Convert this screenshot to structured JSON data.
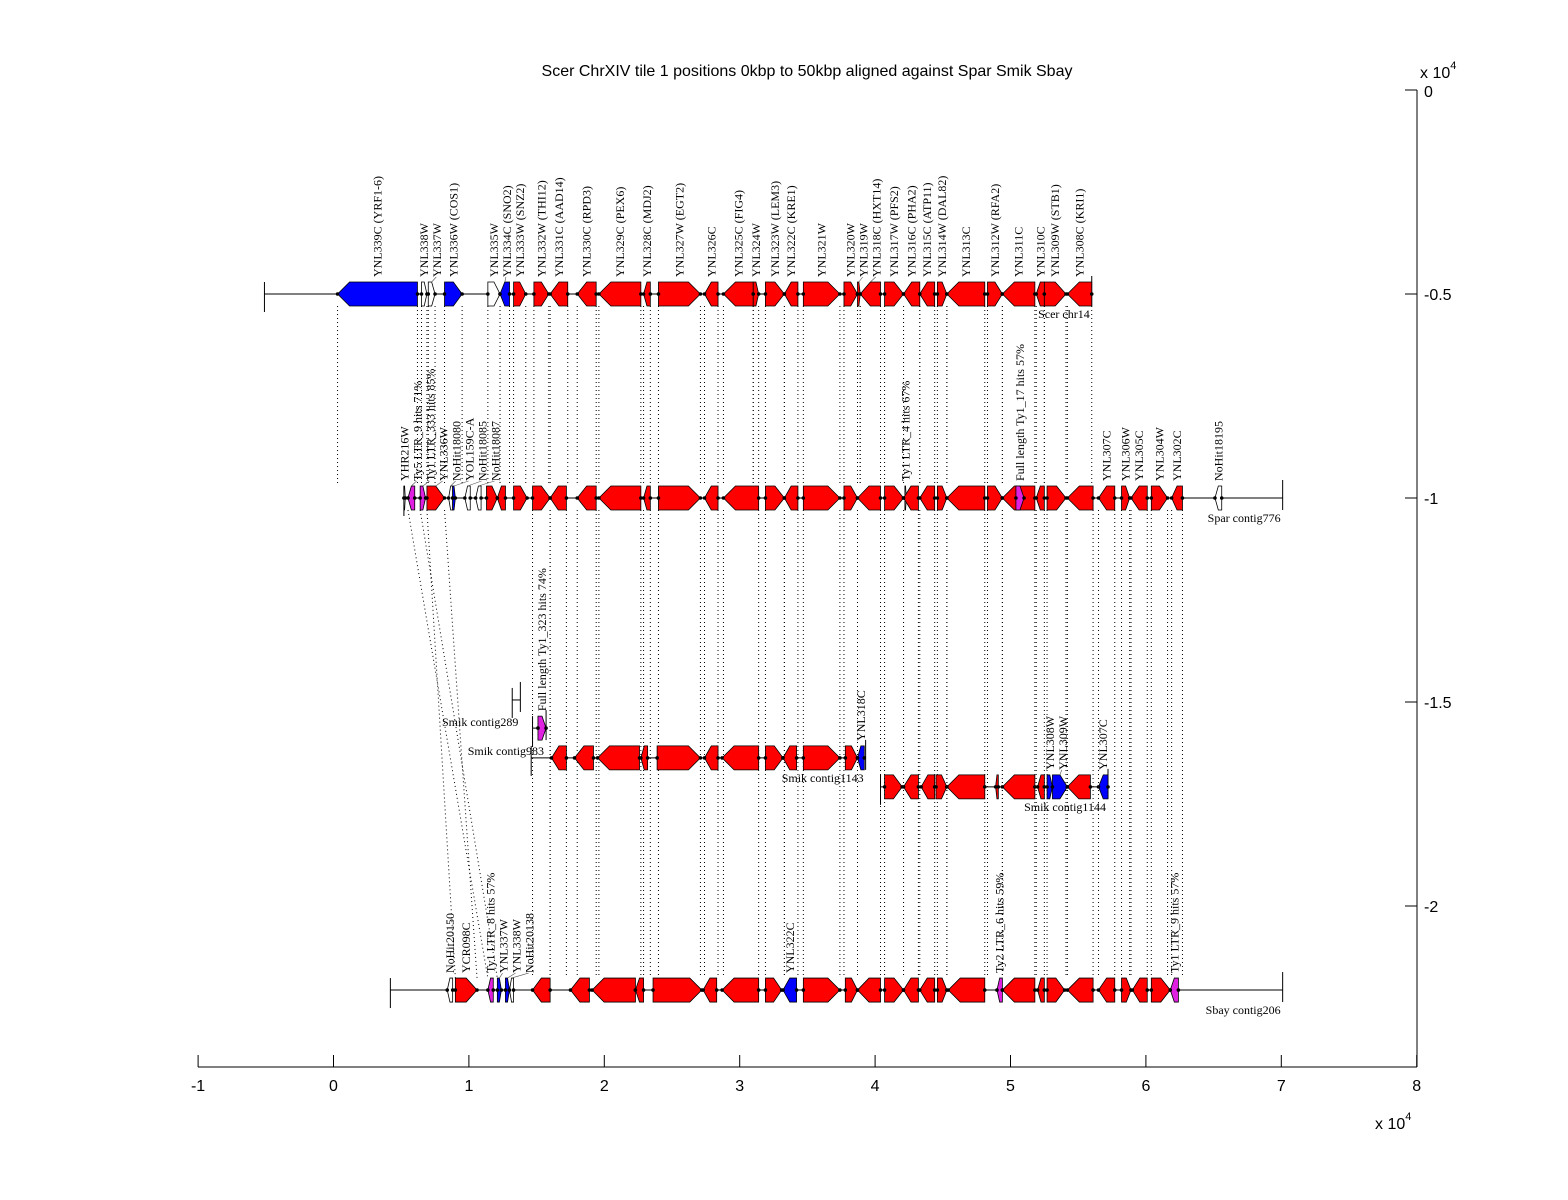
{
  "title": "Scer ChrXIV tile 1 positions 0kbp to 50kbp aligned against Spar Smik Sbay",
  "x_axis": {
    "ticks": [
      "-1",
      "0",
      "1",
      "2",
      "3",
      "4",
      "5",
      "6",
      "7",
      "8"
    ],
    "tick_values": [
      -1,
      0,
      1,
      2,
      3,
      4,
      5,
      6,
      7,
      8
    ],
    "range": [
      -1,
      8
    ],
    "multiplier": "x 10",
    "exponent": "4"
  },
  "y_axis": {
    "ticks": [
      "0",
      "-0.5",
      "-1",
      "-1.5",
      "-2"
    ],
    "tick_values": [
      0,
      -0.5,
      -1,
      -1.5,
      -2
    ],
    "range": [
      -2.39,
      0
    ],
    "multiplier": "x 10",
    "exponent": "4"
  },
  "colors": {
    "r": "#ff0000",
    "b": "#0000ff",
    "m": "#e020e0",
    "w": "#ffffff"
  },
  "tracks": [
    {
      "name": "Scer chr14",
      "y": -0.5,
      "start": -0.51,
      "end": 5.6,
      "genes": [
        [
          "YNL339C (YRF1-6)",
          0.03,
          0.62,
          "C",
          "b"
        ],
        [
          "YNL338W",
          0.65,
          0.69,
          "W",
          "w"
        ],
        [
          "YNL337W",
          0.7,
          0.75,
          "W",
          "w"
        ],
        [
          "YNL336W (COS1)",
          0.82,
          0.95,
          "W",
          "b"
        ],
        [
          "YNL335W",
          1.14,
          1.23,
          "W",
          "w"
        ],
        [
          "YNL334C (SNO2)",
          1.23,
          1.3,
          "C",
          "b"
        ],
        [
          "YNL333W (SNZ2)",
          1.33,
          1.42,
          "W",
          "r"
        ],
        [
          "YNL332W (THI12)",
          1.48,
          1.59,
          "W",
          "r"
        ],
        [
          "YNL331C (AAD14)",
          1.6,
          1.73,
          "C",
          "r"
        ],
        [
          "YNL330C (RPD3)",
          1.8,
          1.94,
          "C",
          "r"
        ],
        [
          "YNL329C (PEX6)",
          1.96,
          2.27,
          "C",
          "r"
        ],
        [
          "YNL328C (MDJ2)",
          2.29,
          2.34,
          "C",
          "r"
        ],
        [
          "YNL327W (EGT2)",
          2.4,
          2.71,
          "W",
          "r"
        ],
        [
          "YNL326C",
          2.74,
          2.84,
          "C",
          "r"
        ],
        [
          "YNL325C (FIG4)",
          2.88,
          3.1,
          "C",
          "r"
        ],
        [
          "YNL324W",
          3.1,
          3.14,
          "W",
          "r"
        ],
        [
          "YNL323W (LEM3)",
          3.19,
          3.33,
          "W",
          "r"
        ],
        [
          "YNL322C (KRE1)",
          3.33,
          3.43,
          "C",
          "r"
        ],
        [
          "YNL321W",
          3.47,
          3.74,
          "W",
          "r"
        ],
        [
          "YNL320W",
          3.77,
          3.87,
          "W",
          "r"
        ],
        [
          "YNL319W",
          3.87,
          3.89,
          "W",
          "r"
        ],
        [
          "YNL318C (HXT14)",
          3.89,
          4.04,
          "C",
          "r"
        ],
        [
          "YNL317W (PFS2)",
          4.07,
          4.21,
          "W",
          "r"
        ],
        [
          "YNL316C (PHA2)",
          4.21,
          4.33,
          "C",
          "r"
        ],
        [
          "YNL315C (ATP11)",
          4.33,
          4.44,
          "C",
          "r"
        ],
        [
          "YNL314W (DAL82)",
          4.46,
          4.53,
          "W",
          "r"
        ],
        [
          "YNL313C",
          4.53,
          4.81,
          "C",
          "r"
        ],
        [
          "YNL312W (RFA2)",
          4.83,
          4.94,
          "W",
          "r"
        ],
        [
          "YNL311C",
          4.94,
          5.18,
          "C",
          "r"
        ],
        [
          "YNL310C",
          5.19,
          5.25,
          "C",
          "r"
        ],
        [
          "YNL309W (STB1)",
          5.25,
          5.41,
          "W",
          "r"
        ],
        [
          "YNL308C (KRI1)",
          5.42,
          5.6,
          "C",
          "r"
        ]
      ]
    },
    {
      "name": "Spar contig776",
      "y": -1.0,
      "start": 0.52,
      "end": 7.01,
      "genes": [
        [
          "YHR216W",
          0.52,
          0.53,
          "W",
          "w"
        ],
        [
          "Ty5 LTR_9 hits 71%",
          0.55,
          0.6,
          "C",
          "m"
        ],
        [
          "Ty1 LTR_333 hits 85%",
          0.64,
          0.68,
          "W",
          "m"
        ],
        [
          "YNL336W",
          0.69,
          0.82,
          "W",
          "r"
        ],
        [
          "NoHit18080",
          0.85,
          0.88,
          "C",
          "w"
        ],
        [
          "YOL159C-A",
          0.88,
          0.9,
          "W",
          "b"
        ],
        [
          "NoHit18085",
          0.97,
          1.01,
          "C",
          "w"
        ],
        [
          "NoHit18087",
          1.05,
          1.09,
          "C",
          "w"
        ],
        [
          "",
          1.13,
          1.21,
          "W",
          "r"
        ],
        [
          "",
          1.21,
          1.27,
          "C",
          "r"
        ],
        [
          "",
          1.33,
          1.43,
          "W",
          "r"
        ],
        [
          "",
          1.47,
          1.6,
          "W",
          "r"
        ],
        [
          "",
          1.6,
          1.72,
          "C",
          "r"
        ],
        [
          "",
          1.8,
          1.94,
          "C",
          "r"
        ],
        [
          "",
          1.96,
          2.27,
          "C",
          "r"
        ],
        [
          "",
          2.29,
          2.34,
          "C",
          "r"
        ],
        [
          "",
          2.4,
          2.71,
          "W",
          "r"
        ],
        [
          "",
          2.74,
          2.84,
          "C",
          "r"
        ],
        [
          "",
          2.88,
          3.14,
          "C",
          "r"
        ],
        [
          "",
          3.19,
          3.33,
          "W",
          "r"
        ],
        [
          "",
          3.33,
          3.43,
          "C",
          "r"
        ],
        [
          "",
          3.47,
          3.74,
          "W",
          "r"
        ],
        [
          "",
          3.77,
          3.87,
          "W",
          "r"
        ],
        [
          "",
          3.87,
          4.04,
          "C",
          "r"
        ],
        [
          "",
          4.07,
          4.21,
          "W",
          "r"
        ],
        [
          "Ty1 LTR_4 hits 67%",
          4.22,
          4.23,
          "W",
          "w"
        ],
        [
          "",
          4.21,
          4.32,
          "C",
          "r"
        ],
        [
          "",
          4.33,
          4.44,
          "C",
          "r"
        ],
        [
          "",
          4.46,
          4.53,
          "W",
          "r"
        ],
        [
          "",
          4.53,
          4.81,
          "C",
          "r"
        ],
        [
          "",
          4.83,
          4.94,
          "W",
          "r"
        ],
        [
          "",
          4.94,
          5.18,
          "C",
          "r"
        ],
        [
          "Full length Ty1_17 hits 57%",
          5.04,
          5.1,
          "W",
          "m"
        ],
        [
          "",
          5.19,
          5.25,
          "C",
          "r"
        ],
        [
          "",
          5.27,
          5.41,
          "W",
          "r"
        ],
        [
          "",
          5.42,
          5.61,
          "C",
          "r"
        ],
        [
          "YNL307C",
          5.65,
          5.77,
          "C",
          "r"
        ],
        [
          "YNL306W",
          5.82,
          5.88,
          "W",
          "r"
        ],
        [
          "YNL305C",
          5.89,
          6.01,
          "C",
          "r"
        ],
        [
          "YNL304W",
          6.04,
          6.16,
          "W",
          "r"
        ],
        [
          "YNL302C",
          6.19,
          6.27,
          "C",
          "r"
        ],
        [
          "NoHit18195",
          6.51,
          6.56,
          "C",
          "w"
        ]
      ]
    },
    {
      "name": "Smik contig289",
      "y": -1.495,
      "start": 1.32,
      "end": 1.38,
      "genes": []
    },
    {
      "name": "Smik contig983",
      "y": -1.564,
      "start": 1.47,
      "end": 1.57,
      "genes": [
        [
          "Full length Ty1_323 hits 74%",
          1.51,
          1.57,
          "W",
          "m"
        ]
      ]
    },
    {
      "name": "Smik contig1143",
      "y": -1.637,
      "start": 1.46,
      "end": 3.93,
      "genes": [
        [
          "",
          1.61,
          1.72,
          "C",
          "r"
        ],
        [
          "",
          1.78,
          1.92,
          "C",
          "r"
        ],
        [
          "",
          1.95,
          2.26,
          "C",
          "r"
        ],
        [
          "",
          2.27,
          2.32,
          "C",
          "r"
        ],
        [
          "",
          2.39,
          2.71,
          "W",
          "r"
        ],
        [
          "",
          2.74,
          2.84,
          "C",
          "r"
        ],
        [
          "",
          2.87,
          3.14,
          "C",
          "r"
        ],
        [
          "",
          3.19,
          3.32,
          "W",
          "r"
        ],
        [
          "",
          3.32,
          3.42,
          "C",
          "r"
        ],
        [
          "",
          3.47,
          3.74,
          "W",
          "r"
        ],
        [
          "",
          3.78,
          3.87,
          "W",
          "r"
        ],
        [
          "YNL318C",
          3.87,
          3.92,
          "C",
          "b"
        ]
      ]
    },
    {
      "name": "Smik contig1144",
      "y": -1.708,
      "start": 4.04,
      "end": 5.72,
      "genes": [
        [
          "",
          4.07,
          4.2,
          "W",
          "r"
        ],
        [
          "",
          4.21,
          4.32,
          "C",
          "r"
        ],
        [
          "",
          4.34,
          4.44,
          "C",
          "r"
        ],
        [
          "",
          4.45,
          4.53,
          "W",
          "r"
        ],
        [
          "",
          4.53,
          4.81,
          "C",
          "r"
        ],
        [
          "",
          4.89,
          4.91,
          "C",
          "r"
        ],
        [
          "",
          4.94,
          5.18,
          "C",
          "r"
        ],
        [
          "",
          5.2,
          5.25,
          "C",
          "r"
        ],
        [
          "YNL308W",
          5.27,
          5.31,
          "W",
          "b"
        ],
        [
          "YNL309W",
          5.31,
          5.42,
          "W",
          "b"
        ],
        [
          "",
          5.42,
          5.59,
          "C",
          "r"
        ],
        [
          "YNL307C",
          5.65,
          5.72,
          "C",
          "b"
        ]
      ]
    },
    {
      "name": "Sbay contig206",
      "y": -2.206,
      "start": 0.42,
      "end": 7.01,
      "genes": [
        [
          "NoHit20150",
          0.84,
          0.88,
          "C",
          "w"
        ],
        [
          "YCR098C",
          0.9,
          1.06,
          "W",
          "r"
        ],
        [
          "Ty1 LTR_8 hits 57%",
          1.14,
          1.18,
          "C",
          "m"
        ],
        [
          "YNL337W",
          1.21,
          1.24,
          "W",
          "b"
        ],
        [
          "YNL338W",
          1.27,
          1.3,
          "W",
          "b"
        ],
        [
          "NoHit20138",
          1.3,
          1.33,
          "C",
          "w"
        ],
        [
          "",
          1.47,
          1.6,
          "C",
          "r"
        ],
        [
          "",
          1.75,
          1.89,
          "C",
          "r"
        ],
        [
          "",
          1.91,
          2.23,
          "C",
          "r"
        ],
        [
          "",
          2.23,
          2.29,
          "C",
          "r"
        ],
        [
          "",
          2.36,
          2.72,
          "W",
          "r"
        ],
        [
          "",
          2.73,
          2.83,
          "C",
          "r"
        ],
        [
          "",
          2.87,
          3.14,
          "C",
          "r"
        ],
        [
          "",
          3.19,
          3.31,
          "W",
          "r"
        ],
        [
          "YNL322C",
          3.32,
          3.42,
          "C",
          "b"
        ],
        [
          "",
          3.47,
          3.74,
          "W",
          "r"
        ],
        [
          "",
          3.78,
          3.87,
          "W",
          "r"
        ],
        [
          "",
          3.87,
          4.04,
          "C",
          "r"
        ],
        [
          "",
          4.07,
          4.21,
          "W",
          "r"
        ],
        [
          "",
          4.21,
          4.32,
          "C",
          "r"
        ],
        [
          "",
          4.33,
          4.44,
          "C",
          "r"
        ],
        [
          "",
          4.46,
          4.53,
          "W",
          "r"
        ],
        [
          "",
          4.54,
          4.81,
          "C",
          "r"
        ],
        [
          "Ty2 LTR_6 hits 59%",
          4.9,
          4.94,
          "C",
          "m"
        ],
        [
          "",
          4.94,
          5.18,
          "C",
          "r"
        ],
        [
          "",
          5.2,
          5.25,
          "C",
          "r"
        ],
        [
          "",
          5.27,
          5.4,
          "W",
          "r"
        ],
        [
          "",
          5.42,
          5.61,
          "C",
          "r"
        ],
        [
          "",
          5.65,
          5.77,
          "C",
          "r"
        ],
        [
          "",
          5.82,
          5.89,
          "W",
          "r"
        ],
        [
          "",
          5.9,
          6.01,
          "C",
          "r"
        ],
        [
          "",
          6.04,
          6.18,
          "W",
          "r"
        ],
        [
          "Ty1 LTR_9 hits 57%",
          6.18,
          6.24,
          "C",
          "m"
        ]
      ]
    }
  ]
}
